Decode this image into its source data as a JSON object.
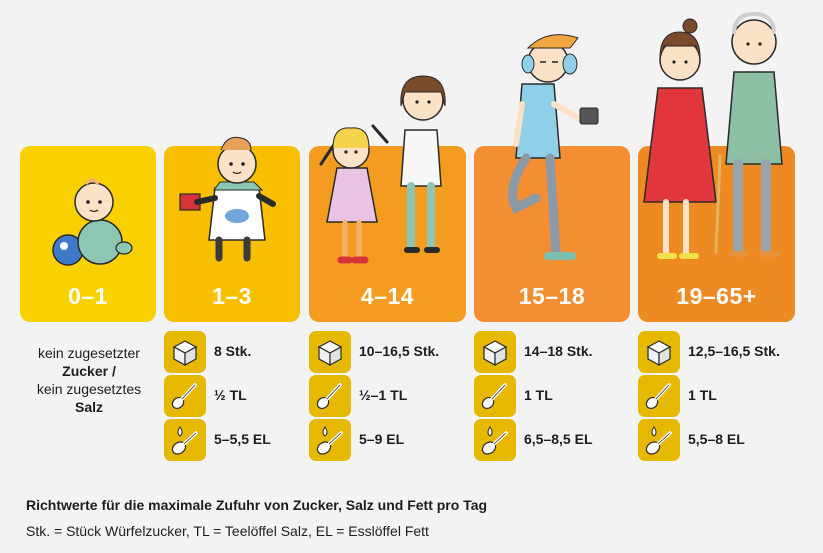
{
  "groups": [
    {
      "label": "0–1",
      "color": "#f9d100"
    },
    {
      "label": "1–3",
      "color": "#f7bf00",
      "sugar": "8 Stk.",
      "salt": "½ TL",
      "fat": "5–5,5 EL"
    },
    {
      "label": "4–14",
      "color": "#f39c1f",
      "sugar": "10–16,5 Stk.",
      "salt": "½–1 TL",
      "fat": "5–9 EL"
    },
    {
      "label": "15–18",
      "color": "#f38e33",
      "sugar": "14–18 Stk.",
      "salt": "1 TL",
      "fat": "6,5–8,5 EL"
    },
    {
      "label": "19–65+",
      "color": "#ee8a22",
      "sugar": "12,5–16,5 Stk.",
      "salt": "1 TL",
      "fat": "5,5–8 EL"
    }
  ],
  "note": {
    "line1": "kein zugesetzter",
    "line2": "Zucker /",
    "line3": "kein zugesetztes",
    "line4": "Salz"
  },
  "footer": {
    "title": "Richtwerte für die maximale Zufuhr von Zucker, Salz und Fett pro Tag",
    "legend": "Stk. = Stück Würfelzucker, TL = Teelöffel Salz, EL = Esslöffel Fett"
  },
  "icons": {
    "sugar": "sugar-cube-icon",
    "salt": "teaspoon-icon",
    "fat": "tablespoon-fat-icon"
  }
}
